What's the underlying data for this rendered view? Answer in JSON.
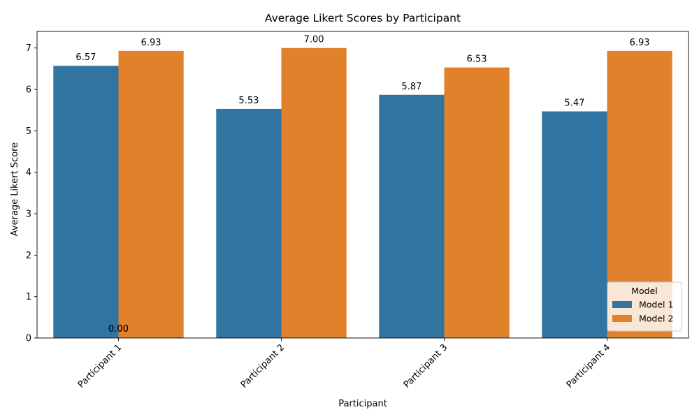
{
  "chart_data": {
    "type": "bar",
    "title": "Average Likert Scores by Participant",
    "xlabel": "Participant",
    "ylabel": "Average Likert Score",
    "categories": [
      "Participant 1",
      "Participant 2",
      "Participant 3",
      "Participant 4"
    ],
    "series": [
      {
        "name": "Model 1",
        "color": "#3274a1",
        "values": [
          6.57,
          5.53,
          5.87,
          5.47
        ]
      },
      {
        "name": "Model 2",
        "color": "#e1812c",
        "values": [
          6.93,
          7.0,
          6.53,
          6.93
        ]
      }
    ],
    "bar_labels": [
      [
        "6.57",
        "5.53",
        "5.87",
        "5.47"
      ],
      [
        "6.93",
        "7.00",
        "6.53",
        "6.93"
      ]
    ],
    "extra_labels": [
      "0.00",
      "0.00"
    ],
    "ylim": [
      0,
      7.4
    ],
    "yticks": [
      0,
      1,
      2,
      3,
      4,
      5,
      6,
      7
    ],
    "grid": false,
    "legend": {
      "title": "Model",
      "position": "lower-right"
    },
    "x_tick_rotation": 45
  }
}
